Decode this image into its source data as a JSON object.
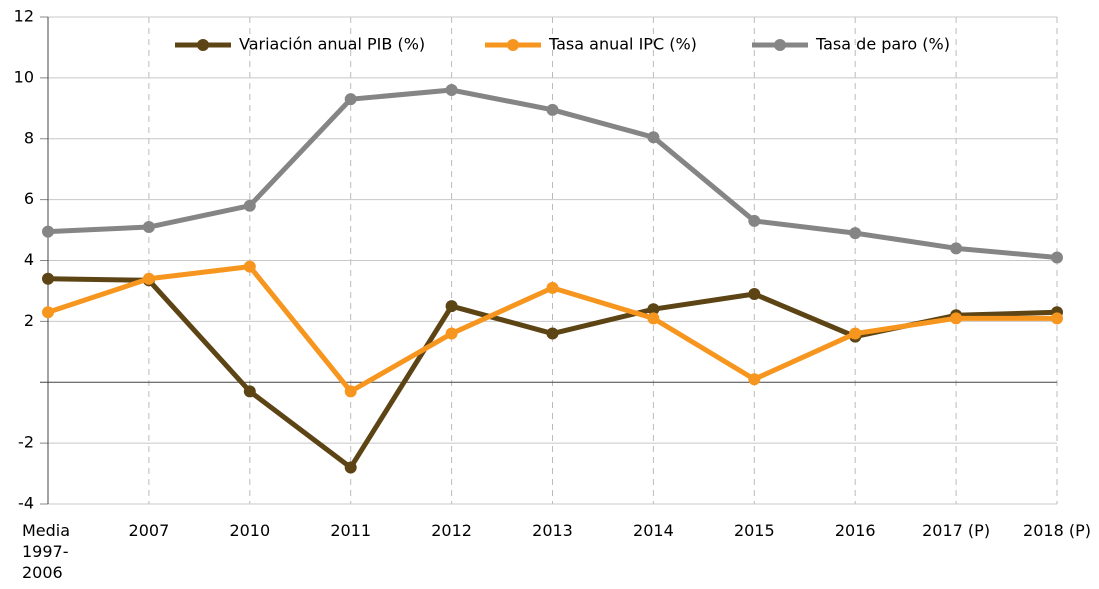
{
  "chart_data": {
    "type": "line",
    "categories": [
      "Media 1997-2006",
      "2007",
      "2010",
      "2011",
      "2012",
      "2013",
      "2014",
      "2015",
      "2016",
      "2017 (P)",
      "2018 (P)"
    ],
    "series": [
      {
        "name": "Variación anual PIB (%)",
        "color": "#5c4415",
        "values": [
          3.4,
          3.35,
          -0.3,
          -2.8,
          2.5,
          1.6,
          2.4,
          2.9,
          1.5,
          2.2,
          2.3
        ]
      },
      {
        "name": "Tasa anual IPC (%)",
        "color": "#f7961e",
        "values": [
          2.3,
          3.4,
          3.8,
          -0.3,
          1.6,
          3.1,
          2.1,
          0.1,
          1.6,
          2.1,
          2.1
        ]
      },
      {
        "name": "Tasa de paro (%)",
        "color": "#858585",
        "values": [
          4.95,
          5.1,
          5.8,
          9.3,
          9.6,
          8.95,
          8.05,
          5.3,
          4.9,
          4.4,
          4.1
        ]
      }
    ],
    "ylim": [
      -4,
      12
    ],
    "yticks": [
      -4,
      -2,
      2,
      4,
      6,
      8,
      10,
      12
    ],
    "grid": true,
    "legend": "top"
  }
}
